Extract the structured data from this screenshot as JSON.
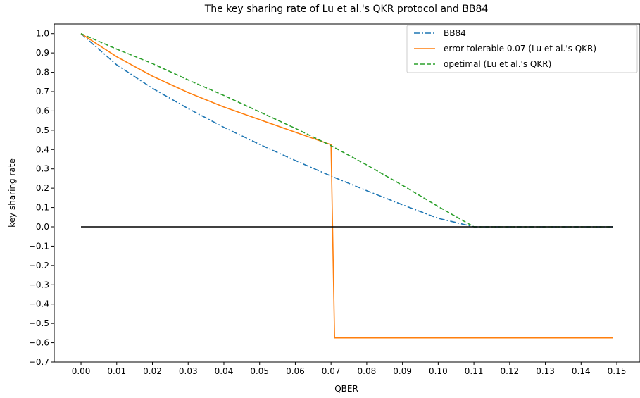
{
  "chart_data": {
    "type": "line",
    "title": "The key sharing rate of Lu et al.'s QKR protocol and BB84",
    "xlabel": "QBER",
    "ylabel": "key sharing rate",
    "xlim": [
      -0.0075,
      0.1565
    ],
    "ylim": [
      -0.7,
      1.05
    ],
    "grid": false,
    "legend_position": "top-right",
    "x_ticks": [
      "0.00",
      "0.01",
      "0.02",
      "0.03",
      "0.04",
      "0.05",
      "0.06",
      "0.07",
      "0.08",
      "0.09",
      "0.10",
      "0.11",
      "0.12",
      "0.13",
      "0.14",
      "0.15"
    ],
    "y_ticks": [
      "1.0",
      "0.9",
      "0.8",
      "0.7",
      "0.6",
      "0.5",
      "0.4",
      "0.3",
      "0.2",
      "0.1",
      "0.0",
      "−0.1",
      "−0.2",
      "−0.3",
      "−0.4",
      "−0.5",
      "−0.6",
      "−0.7"
    ],
    "series": [
      {
        "name": "BB84",
        "color": "#1f77b4",
        "style": "dashdot",
        "x": [
          0.0,
          0.01,
          0.02,
          0.03,
          0.04,
          0.05,
          0.06,
          0.07,
          0.08,
          0.09,
          0.1,
          0.11,
          0.12,
          0.13,
          0.14,
          0.149
        ],
        "y": [
          1.0,
          0.838,
          0.717,
          0.612,
          0.515,
          0.427,
          0.343,
          0.263,
          0.187,
          0.114,
          0.044,
          0.0,
          0.0,
          0.0,
          0.0,
          0.0
        ]
      },
      {
        "name": "error-tolerable 0.07 (Lu et al.'s QKR)",
        "color": "#ff7f0e",
        "style": "solid",
        "x": [
          0.0,
          0.01,
          0.02,
          0.03,
          0.04,
          0.05,
          0.06,
          0.07,
          0.071,
          0.08,
          0.09,
          0.1,
          0.11,
          0.12,
          0.13,
          0.14,
          0.149
        ],
        "y": [
          1.0,
          0.88,
          0.78,
          0.695,
          0.62,
          0.555,
          0.49,
          0.425,
          -0.575,
          -0.575,
          -0.575,
          -0.575,
          -0.575,
          -0.575,
          -0.575,
          -0.575,
          -0.575
        ]
      },
      {
        "name": "opetimal (Lu et al.'s QKR)",
        "color": "#2ca02c",
        "style": "dashed",
        "x": [
          0.0,
          0.01,
          0.02,
          0.03,
          0.04,
          0.05,
          0.06,
          0.07,
          0.08,
          0.09,
          0.1,
          0.11,
          0.12,
          0.13,
          0.14,
          0.149
        ],
        "y": [
          1.0,
          0.92,
          0.845,
          0.76,
          0.68,
          0.595,
          0.51,
          0.42,
          0.32,
          0.215,
          0.105,
          0.0,
          0.0,
          0.0,
          0.0,
          0.0
        ]
      },
      {
        "color": "#000000",
        "style": "solid",
        "x": [
          0.0,
          0.149
        ],
        "y": [
          0.0,
          0.0
        ]
      }
    ]
  }
}
